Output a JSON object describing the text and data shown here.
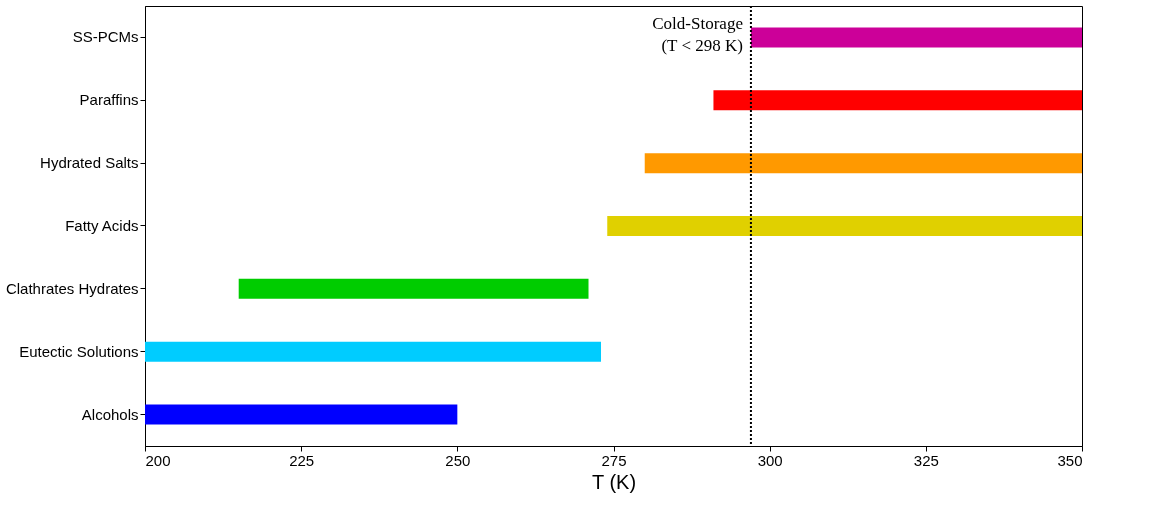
{
  "chart_data": {
    "type": "bar",
    "orientation": "horizontal",
    "xlabel": "T (K)",
    "categories": [
      "SS-PCMs",
      "Paraffins",
      "Hydrated Salts",
      "Fatty Acids",
      "Clathrates Hydrates",
      "Eutectic Solutions",
      "Alcohols"
    ],
    "base": [
      297,
      291,
      280,
      274,
      215,
      200,
      200
    ],
    "values": [
      53,
      59,
      70,
      76,
      56,
      73,
      50
    ],
    "colors": [
      "#cc0099",
      "#ff0000",
      "#ff9900",
      "#e0d000",
      "#00cc00",
      "#00ccff",
      "#0000ff"
    ],
    "xlim": [
      200,
      350
    ],
    "xticks": [
      200,
      225,
      250,
      275,
      300,
      325,
      350
    ],
    "grid": false,
    "ref_lines": [
      {
        "axis": "x",
        "value": 297,
        "label": "Cold-Storage\n(T < 298 K)",
        "color": "#000000",
        "line_style": "dotted"
      }
    ]
  }
}
